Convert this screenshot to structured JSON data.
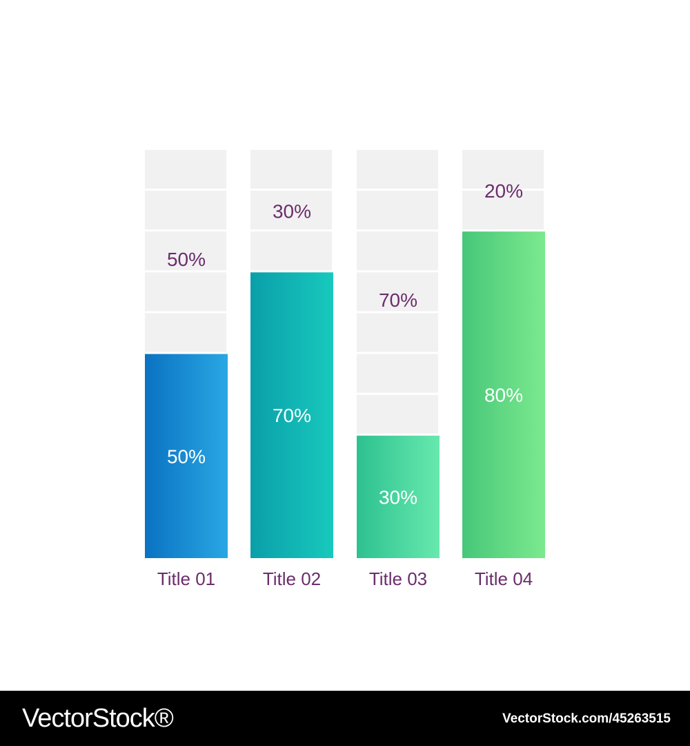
{
  "chart_data": {
    "type": "bar",
    "stacked_percent": true,
    "categories": [
      "Title 01",
      "Title 02",
      "Title 03",
      "Title 04"
    ],
    "series": [
      {
        "values": [
          50,
          70,
          30,
          80
        ]
      },
      {
        "values": [
          50,
          30,
          70,
          20
        ]
      }
    ],
    "value_labels": [
      "50%",
      "70%",
      "30%",
      "80%"
    ],
    "remainder_labels": [
      "50%",
      "30%",
      "70%",
      "20%"
    ],
    "ylim": [
      0,
      100
    ],
    "grid": false,
    "segments_per_bar": 10,
    "colors": {
      "remainder": "#f1f1f1",
      "category_label": "#6b2d6b",
      "remainder_label": "#6b2d6b",
      "value_label": "#ffffff",
      "bar_gradients": [
        [
          "#0a72c2",
          "#29a7e3"
        ],
        [
          "#0a9fa9",
          "#18c9bd"
        ],
        [
          "#2dc190",
          "#67e9ae"
        ],
        [
          "#47c779",
          "#7ce98e"
        ]
      ]
    }
  },
  "watermark": {
    "logo_text": "VectorStock®",
    "image_id": "VectorStock.com/45263515"
  }
}
